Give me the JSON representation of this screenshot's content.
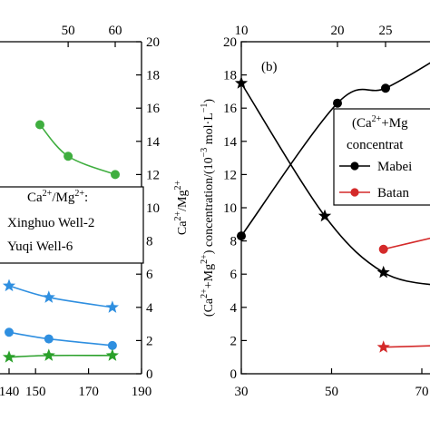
{
  "chart_data": [
    {
      "type": "line",
      "panel": "a (cropped)",
      "x_bottom": {
        "ticks": [
          "150",
          "170",
          "190"
        ],
        "visible_ticks_partial": [
          "140"
        ],
        "range": [
          140,
          190
        ]
      },
      "x_top": {
        "ticks": [
          "50",
          "60"
        ]
      },
      "y_right": {
        "label": "Ca²⁺/Mg²⁺",
        "ticks": [
          "0",
          "2",
          "4",
          "6",
          "8",
          "10",
          "12",
          "14",
          "16",
          "18",
          "20"
        ],
        "range": [
          0,
          20
        ]
      },
      "legend": {
        "title": "Ca²⁺/Mg²⁺:",
        "entries": [
          "Xinghuo Well-2",
          "Yuqi Well-6"
        ],
        "placement": "left"
      },
      "series": [
        {
          "marker": "circle",
          "color": "#3fae3f",
          "axis": "top-x / right-y",
          "x": [
            44,
            50,
            60
          ],
          "y": [
            15.0,
            13.1,
            12.0
          ]
        },
        {
          "marker": "star",
          "color": "#2f8fe0",
          "axis": "bottom-x / right-y",
          "x": [
            140,
            155,
            179
          ],
          "y": [
            5.3,
            4.6,
            4.0
          ]
        },
        {
          "marker": "circle",
          "color": "#2f8fe0",
          "axis": "bottom-x / right-y",
          "x": [
            140,
            155,
            179
          ],
          "y": [
            2.5,
            2.1,
            1.7
          ]
        },
        {
          "marker": "star",
          "color": "#2aa02a",
          "axis": "bottom-x / right-y",
          "x": [
            140,
            155,
            179
          ],
          "y": [
            1.0,
            1.1,
            1.1
          ]
        }
      ]
    },
    {
      "type": "line",
      "panel": "(b)",
      "x_bottom": {
        "ticks": [
          "30",
          "50",
          "70"
        ],
        "range": [
          30,
          74
        ]
      },
      "x_top": {
        "ticks": [
          "10",
          "20",
          "25"
        ],
        "range": [
          10,
          31
        ]
      },
      "y_left": {
        "label": "(Ca²⁺+Mg²⁺) concentration/(10⁻³ mol·L⁻¹)",
        "ticks": [
          "0",
          "2",
          "4",
          "6",
          "8",
          "10",
          "12",
          "14",
          "16",
          "18",
          "20"
        ],
        "range": [
          0,
          20
        ]
      },
      "legend": {
        "title_lines": [
          "(Ca²⁺+Mg",
          "concentrat"
        ],
        "entries": [
          "Mabei",
          "Batan"
        ]
      },
      "series": [
        {
          "name": "Mabei",
          "marker": "circle",
          "color": "#000000",
          "axis": "top-x",
          "x": [
            10,
            20,
            25,
            31
          ],
          "y": [
            8.3,
            16.3,
            17.2,
            19.2
          ]
        },
        {
          "marker": "star",
          "color": "#000000",
          "axis": "bottom-x",
          "x": [
            30,
            48.5,
            61.5,
            74
          ],
          "y": [
            17.5,
            9.5,
            6.1,
            5.3
          ]
        },
        {
          "name": "Batan",
          "marker": "circle",
          "color": "#d42a2a",
          "axis": "bottom-x",
          "x": [
            61.5,
            74
          ],
          "y": [
            7.5,
            8.3
          ]
        },
        {
          "marker": "star",
          "color": "#d42a2a",
          "axis": "bottom-x",
          "x": [
            61.5,
            74
          ],
          "y": [
            1.6,
            1.7
          ]
        }
      ]
    }
  ]
}
